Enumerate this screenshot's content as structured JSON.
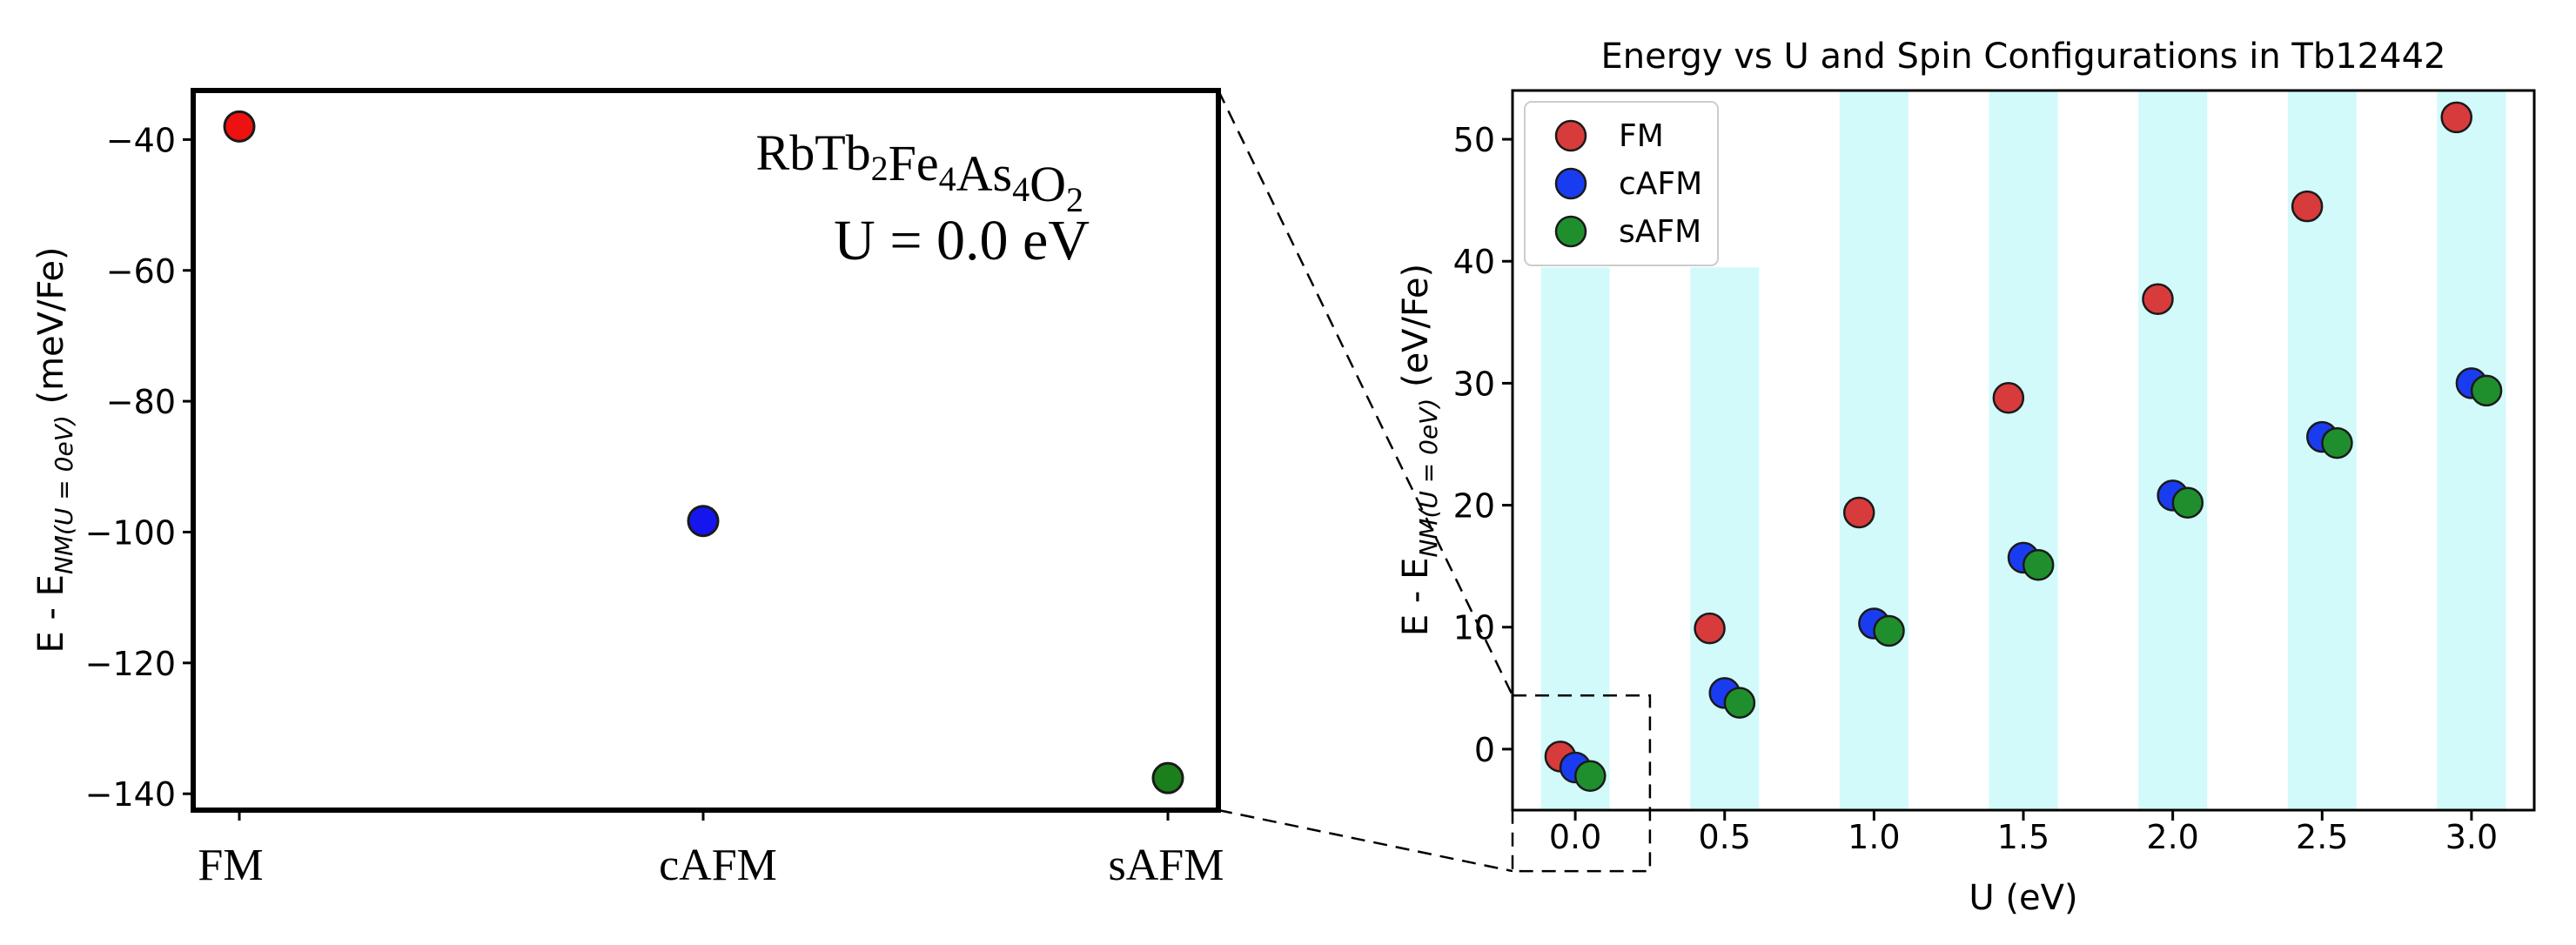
{
  "colors": {
    "fm": "#d83b3b",
    "cafm": "#1a3cf0",
    "safm": "#1f8f2e",
    "left_fm": "#ee1111",
    "left_cafm": "#1515ee",
    "left_safm": "#1b7f1b",
    "band": "#d2fafa",
    "marker_edge": "#1a1a1a"
  },
  "chart_data": [
    {
      "type": "scatter",
      "panel": "left",
      "formula": {
        "base": [
          "Rb",
          "Tb",
          "Fe",
          "As",
          "O"
        ],
        "subscripts": [
          "",
          "2",
          "4",
          "4",
          "2"
        ]
      },
      "annotation_u": "U = 0.0 eV",
      "ylabel": {
        "prefix": "E - E",
        "subscript": "NM(U = 0eV)",
        "suffix": " (meV/Fe)"
      },
      "categories": [
        "FM",
        "cAFM",
        "sAFM"
      ],
      "values": [
        -38,
        -98.3,
        -137.6
      ],
      "ylim": [
        -142.5,
        -32.5
      ],
      "yticks": [
        -40,
        -60,
        -80,
        -100,
        -120,
        -140
      ],
      "ytick_labels": [
        "−40",
        "−60",
        "−80",
        "−100",
        "−120",
        "−140"
      ]
    },
    {
      "type": "scatter",
      "panel": "right",
      "title": "Energy vs U and Spin Configurations in Tb12442",
      "xlabel": "U (eV)",
      "ylabel": {
        "prefix": "E - E",
        "subscript": "NM(U = 0eV)",
        "suffix": " (eV/Fe)"
      },
      "x": [
        0.0,
        0.5,
        1.0,
        1.5,
        2.0,
        2.5,
        3.0
      ],
      "xticks": [
        "0.0",
        "0.5",
        "1.0",
        "1.5",
        "2.0",
        "2.5",
        "3.0"
      ],
      "yticks": [
        0,
        10,
        20,
        30,
        40,
        50
      ],
      "ytick_labels": [
        "0",
        "10",
        "20",
        "30",
        "40",
        "50"
      ],
      "xlim": [
        -0.21,
        3.21
      ],
      "ylim": [
        -5.0,
        54.0
      ],
      "band_tops": [
        39.5,
        39.5,
        54,
        54,
        54,
        54,
        54
      ],
      "series": [
        {
          "name": "FM",
          "offset": -0.05,
          "values": [
            -0.6,
            9.9,
            19.4,
            28.8,
            36.9,
            44.5,
            51.8
          ]
        },
        {
          "name": "cAFM",
          "offset": 0.0,
          "values": [
            -1.5,
            4.6,
            10.3,
            15.7,
            20.8,
            25.6,
            30.0
          ]
        },
        {
          "name": "sAFM",
          "offset": 0.05,
          "values": [
            -2.2,
            3.8,
            9.7,
            15.1,
            20.2,
            25.1,
            29.4
          ]
        }
      ],
      "legend": {
        "placement": "top-left",
        "entries": [
          "FM",
          "cAFM",
          "sAFM"
        ]
      },
      "zoom_box": {
        "x": [
          -0.21,
          0.25
        ],
        "y": [
          -10.0,
          4.4
        ]
      }
    }
  ]
}
